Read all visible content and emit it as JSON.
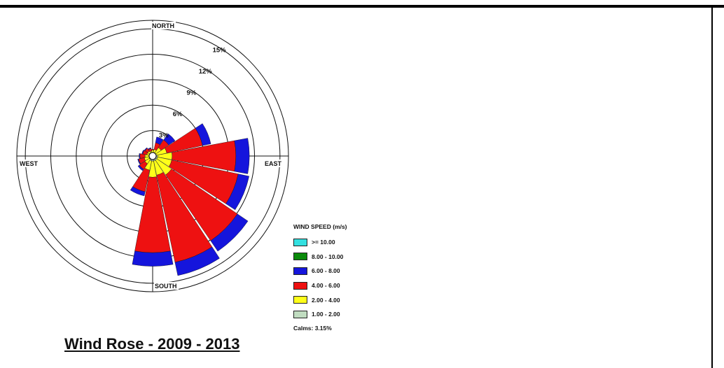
{
  "chart_data": {
    "type": "wind-rose",
    "title": "Wind Rose - 2009 - 2013",
    "directions": [
      "N",
      "NNE",
      "NE",
      "ENE",
      "E",
      "ESE",
      "SE",
      "SSE",
      "S",
      "SSW",
      "SW",
      "WSW",
      "W",
      "WNW",
      "NW",
      "NNW"
    ],
    "compass_labels": {
      "north": "NORTH",
      "east": "EAST",
      "south": "SOUTH",
      "west": "WEST"
    },
    "ring_labels": [
      "3%",
      "6%",
      "9%",
      "12%",
      "15%"
    ],
    "rings": [
      3,
      6,
      9,
      12,
      15
    ],
    "max": 16,
    "legend": {
      "title": "WIND SPEED (m/s)",
      "classes": [
        {
          "label": ">= 10.00",
          "color": "#33e0e0"
        },
        {
          "label": "8.00 - 10.00",
          "color": "#0a8a0a"
        },
        {
          "label": "6.00 - 8.00",
          "color": "#1515dc"
        },
        {
          "label": "4.00 - 6.00",
          "color": "#ee1111"
        },
        {
          "label": "2.00 - 4.00",
          "color": "#ffff1a"
        },
        {
          "label": "1.00 - 2.00",
          "color": "#c0dcc0"
        }
      ],
      "calms": "Calms: 3.15%"
    },
    "stack_order": [
      "1.00 - 2.00",
      "2.00 - 4.00",
      "4.00 - 6.00",
      "6.00 - 8.00",
      "8.00 - 10.00",
      ">= 10.00"
    ],
    "series_colors": [
      "#c0dcc0",
      "#ffff1a",
      "#ee1111",
      "#1515dc",
      "#0a8a0a",
      "#33e0e0"
    ],
    "cumulative_percent": [
      [
        0.3,
        0.7,
        0.8,
        0.8,
        0.8,
        0.8
      ],
      [
        0.3,
        0.8,
        1.6,
        2.3,
        2.3,
        2.3
      ],
      [
        0.4,
        1.2,
        2.3,
        3.2,
        3.2,
        3.2
      ],
      [
        0.4,
        1.7,
        6.0,
        7.0,
        7.0,
        7.0
      ],
      [
        0.6,
        2.3,
        9.8,
        11.4,
        11.4,
        11.4
      ],
      [
        0.6,
        2.3,
        10.3,
        11.6,
        11.6,
        11.6
      ],
      [
        0.6,
        2.7,
        12.1,
        13.6,
        13.6,
        13.6
      ],
      [
        0.6,
        2.3,
        12.8,
        14.4,
        14.4,
        14.4
      ],
      [
        0.6,
        2.5,
        11.4,
        13.0,
        13.0,
        13.0
      ],
      [
        0.6,
        1.7,
        4.3,
        4.8,
        4.8,
        4.8
      ],
      [
        0.5,
        1.1,
        1.9,
        2.1,
        2.1,
        2.1
      ],
      [
        0.4,
        1.0,
        1.7,
        1.8,
        1.8,
        1.8
      ],
      [
        0.4,
        0.9,
        1.5,
        1.6,
        1.6,
        1.6
      ],
      [
        0.3,
        0.7,
        1.2,
        1.3,
        1.3,
        1.3
      ],
      [
        0.3,
        0.7,
        1.1,
        1.2,
        1.2,
        1.2
      ],
      [
        0.3,
        0.6,
        0.9,
        1.0,
        1.0,
        1.0
      ]
    ],
    "grid": true
  }
}
